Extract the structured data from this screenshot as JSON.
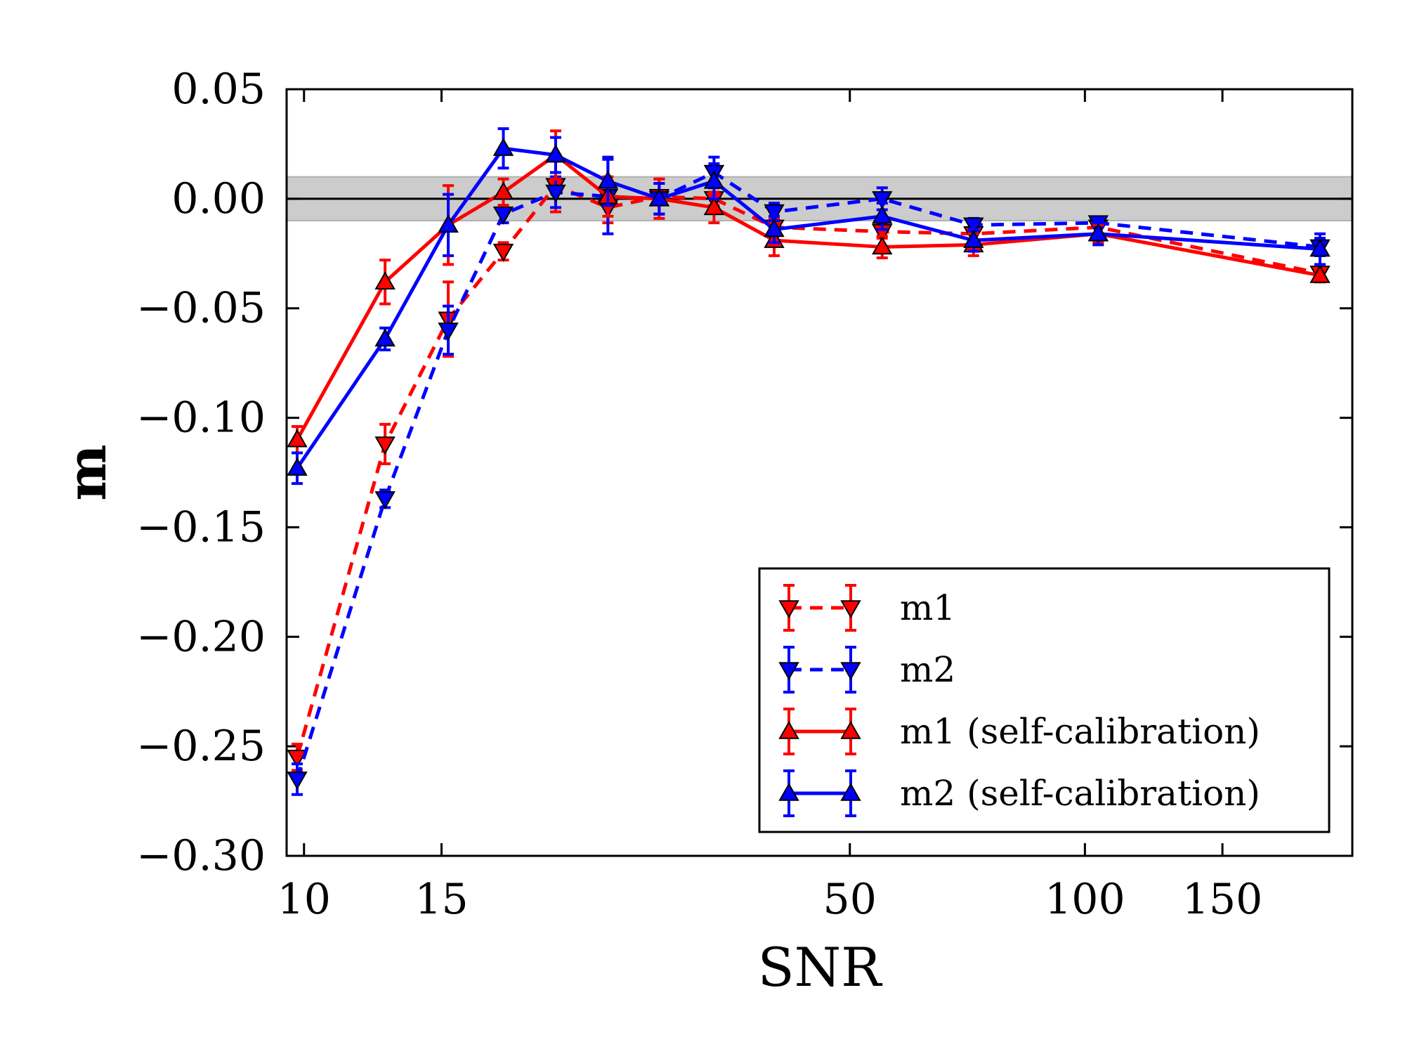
{
  "chart_data": {
    "type": "line",
    "title": "",
    "xlabel": "SNR",
    "ylabel": "m",
    "xscale": "log",
    "xlim": [
      9.5,
      220
    ],
    "ylim": [
      -0.3,
      0.05
    ],
    "grid": false,
    "x_ticks": [
      10,
      15,
      50,
      100,
      150
    ],
    "x_tick_labels": [
      "10",
      "15",
      "50",
      "100",
      "150"
    ],
    "y_ticks": [
      0.05,
      0.0,
      -0.05,
      -0.1,
      -0.15,
      -0.2,
      -0.25,
      -0.3
    ],
    "y_tick_labels": [
      "0.05",
      "0.00",
      "−0.05",
      "−0.10",
      "−0.15",
      "−0.20",
      "−0.25",
      "−0.30"
    ],
    "reference_line": 0.0,
    "reference_band": [
      -0.01,
      0.01
    ],
    "legend_position": "lower-right",
    "x": [
      9.8,
      12.7,
      15.3,
      18.0,
      21.0,
      24.5,
      28.5,
      33.5,
      40.0,
      55.0,
      72.0,
      104.0,
      200.0
    ],
    "series": [
      {
        "name": "m1",
        "color": "#ff0000",
        "linestyle": "dashed",
        "marker": "down-triangle",
        "values": [
          -0.255,
          -0.112,
          -0.055,
          -0.024,
          0.006,
          -0.004,
          0.001,
          0.0,
          -0.013,
          -0.015,
          -0.016,
          -0.013,
          -0.034
        ],
        "errors": [
          0.006,
          0.009,
          0.017,
          0.004,
          0.012,
          0.007,
          0.008,
          0.003,
          0.004,
          0.003,
          0.003,
          0.003,
          0.003
        ]
      },
      {
        "name": "m2",
        "color": "#0000ff",
        "linestyle": "dashed",
        "marker": "down-triangle",
        "values": [
          -0.265,
          -0.137,
          -0.06,
          -0.007,
          0.003,
          0.001,
          0.0,
          0.012,
          -0.006,
          0.0,
          -0.012,
          -0.011,
          -0.022
        ],
        "errors": [
          0.007,
          0.004,
          0.011,
          0.004,
          0.007,
          0.017,
          0.007,
          0.007,
          0.004,
          0.005,
          0.003,
          0.002,
          0.004
        ]
      },
      {
        "name": "m1 (self-calibration)",
        "color": "#ff0000",
        "linestyle": "solid",
        "marker": "up-triangle",
        "values": [
          -0.11,
          -0.038,
          -0.012,
          0.003,
          0.02,
          0.001,
          0.0,
          -0.004,
          -0.019,
          -0.022,
          -0.021,
          -0.016,
          -0.035
        ],
        "errors": [
          0.006,
          0.01,
          0.018,
          0.006,
          0.011,
          0.009,
          0.009,
          0.007,
          0.007,
          0.005,
          0.005,
          0.004,
          0.003
        ]
      },
      {
        "name": "m2 (self-calibration)",
        "color": "#0000ff",
        "linestyle": "solid",
        "marker": "up-triangle",
        "values": [
          -0.123,
          -0.064,
          -0.012,
          0.023,
          0.02,
          0.008,
          0.0,
          0.008,
          -0.014,
          -0.008,
          -0.019,
          -0.016,
          -0.023
        ],
        "errors": [
          0.007,
          0.005,
          0.014,
          0.009,
          0.008,
          0.011,
          0.007,
          0.008,
          0.006,
          0.006,
          0.005,
          0.005,
          0.007
        ]
      }
    ]
  }
}
